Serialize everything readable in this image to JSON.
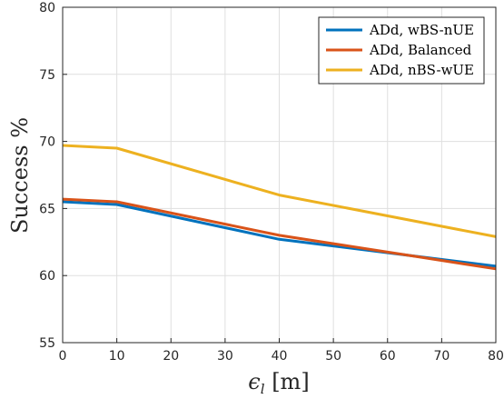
{
  "chart_data": {
    "type": "line",
    "title": "",
    "xlabel": "ε_l [m]",
    "ylabel": "Success %",
    "xlim": [
      0,
      80
    ],
    "ylim": [
      55,
      80
    ],
    "xticks": [
      0,
      10,
      20,
      30,
      40,
      50,
      60,
      70,
      80
    ],
    "yticks": [
      55,
      60,
      65,
      70,
      75,
      80
    ],
    "grid": true,
    "legend_position": "top-right",
    "x": [
      0,
      10,
      40,
      80
    ],
    "series": [
      {
        "name": "ADd, wBS-nUE",
        "color": "#0072BD",
        "values": [
          65.5,
          65.3,
          62.7,
          60.7
        ]
      },
      {
        "name": "ADd, Balanced",
        "color": "#D95319",
        "values": [
          65.7,
          65.5,
          63.0,
          60.5
        ]
      },
      {
        "name": "ADd, nBS-wUE",
        "color": "#EDB120",
        "values": [
          69.7,
          69.5,
          66.0,
          62.9
        ]
      }
    ]
  }
}
